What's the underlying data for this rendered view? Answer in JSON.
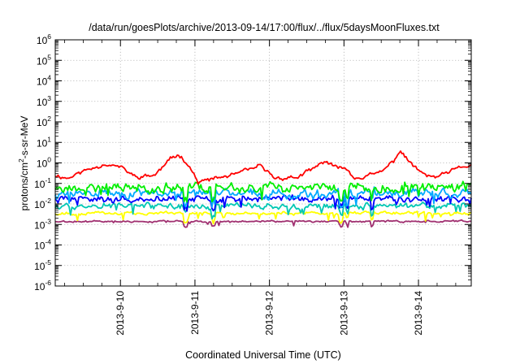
{
  "chart_data": {
    "type": "line",
    "title": "/data/run/goesPlots/archive/2013-09-14/17:00/flux/../flux/5daysMoonFluxes.txt",
    "xlabel": "Coordinated Universal Time (UTC)",
    "ylabel": {
      "prefix": "protons/cm",
      "sup": "2",
      "suffix": "-s-sr-MeV"
    },
    "y_scale": "log",
    "ylim": [
      1e-06,
      1000000.0
    ],
    "y_ticks": [
      {
        "base": "10",
        "exp": "-6"
      },
      {
        "base": "10",
        "exp": "-5"
      },
      {
        "base": "10",
        "exp": "-4"
      },
      {
        "base": "10",
        "exp": "-3"
      },
      {
        "base": "10",
        "exp": "-2"
      },
      {
        "base": "10",
        "exp": "-1"
      },
      {
        "base": "10",
        "exp": "0"
      },
      {
        "base": "10",
        "exp": "1"
      },
      {
        "base": "10",
        "exp": "2"
      },
      {
        "base": "10",
        "exp": "3"
      },
      {
        "base": "10",
        "exp": "4"
      },
      {
        "base": "10",
        "exp": "5"
      },
      {
        "base": "10",
        "exp": "6"
      }
    ],
    "x_range_days": [
      "2013-09-09 03:00",
      "2013-09-14 17:00"
    ],
    "x_ticks": [
      {
        "label": "2013-9-10",
        "date": "2013-09-10"
      },
      {
        "label": "2013-9-11",
        "date": "2013-09-11"
      },
      {
        "label": "2013-9-12",
        "date": "2013-09-12"
      },
      {
        "label": "2013-9-13",
        "date": "2013-09-13"
      },
      {
        "label": "2013-9-14",
        "date": "2013-09-14"
      }
    ],
    "grid": true,
    "series": [
      {
        "color": "#ff0000",
        "log_anchors": [
          [
            "2013-09-09 03:00",
            -0.6
          ],
          [
            "2013-09-09 07:00",
            -0.75
          ],
          [
            "2013-09-09 12:00",
            -0.4
          ],
          [
            "2013-09-09 19:00",
            -0.05
          ],
          [
            "2013-09-10 00:00",
            -0.2
          ],
          [
            "2013-09-10 05:00",
            -0.7
          ],
          [
            "2013-09-10 11:00",
            -0.6
          ],
          [
            "2013-09-10 17:00",
            0.3
          ],
          [
            "2013-09-10 19:00",
            0.4
          ],
          [
            "2013-09-10 22:00",
            -0.1
          ],
          [
            "2013-09-11 01:00",
            -0.95
          ],
          [
            "2013-09-11 05:00",
            -0.8
          ],
          [
            "2013-09-11 12:00",
            -0.6
          ],
          [
            "2013-09-11 18:00",
            -0.3
          ],
          [
            "2013-09-11 21:00",
            -0.15
          ],
          [
            "2013-09-12 02:00",
            -0.75
          ],
          [
            "2013-09-12 09:00",
            -0.7
          ],
          [
            "2013-09-12 14:00",
            -0.3
          ],
          [
            "2013-09-12 18:00",
            0.1
          ],
          [
            "2013-09-12 22:00",
            -0.3
          ],
          [
            "2013-09-13 00:00",
            -0.15
          ],
          [
            "2013-09-13 03:00",
            -0.7
          ],
          [
            "2013-09-13 06:00",
            -0.7
          ],
          [
            "2013-09-13 12:00",
            -0.45
          ],
          [
            "2013-09-13 16:00",
            0.1
          ],
          [
            "2013-09-13 18:00",
            0.6
          ],
          [
            "2013-09-13 22:00",
            -0.1
          ],
          [
            "2013-09-14 02:00",
            -0.6
          ],
          [
            "2013-09-14 06:00",
            -0.7
          ],
          [
            "2013-09-14 12:00",
            -0.3
          ],
          [
            "2013-09-14 17:00",
            -0.1
          ]
        ],
        "noise": 0.13,
        "seed": 11
      },
      {
        "color": "#00ee00",
        "log_level": -1.2,
        "noise": 0.3,
        "dip": 0.6,
        "seed": 23
      },
      {
        "color": "#00aaff",
        "log_level": -1.5,
        "noise": 0.3,
        "dip": 0.55,
        "seed": 37
      },
      {
        "color": "#0000ff",
        "log_level": -1.75,
        "noise": 0.22,
        "dip": 0.5,
        "seed": 41
      },
      {
        "color": "#00c8b4",
        "log_level": -2.1,
        "noise": 0.2,
        "dip": 0.45,
        "seed": 53
      },
      {
        "color": "#ffff00",
        "log_level": -2.45,
        "noise": 0.1,
        "dip": 0.35,
        "seed": 67
      },
      {
        "color": "#a03070",
        "log_level": -2.85,
        "noise": 0.06,
        "dip": 0.25,
        "seed": 79
      }
    ]
  }
}
